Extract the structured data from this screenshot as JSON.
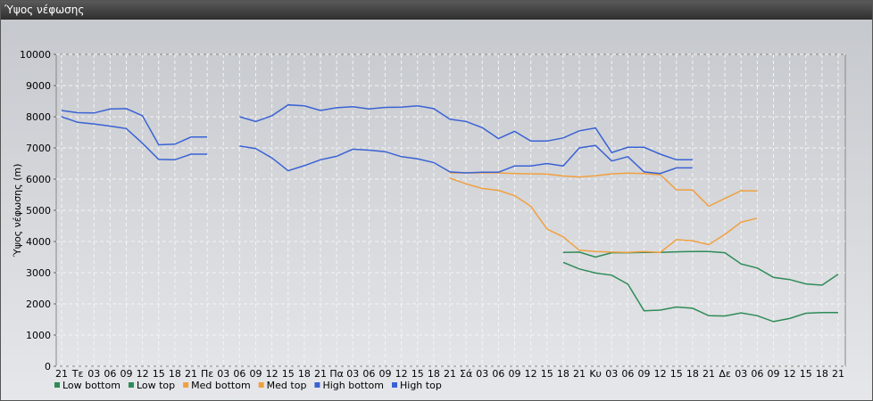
{
  "window": {
    "title": "Ύψος νέφωσης"
  },
  "chart_data": {
    "type": "line",
    "y_label": "Ύψος νέφωσης (m)",
    "categories": [
      "21",
      "Τε",
      "03",
      "06",
      "09",
      "12",
      "15",
      "18",
      "21",
      "Πε",
      "03",
      "06",
      "09",
      "12",
      "15",
      "18",
      "21",
      "Πα",
      "03",
      "06",
      "09",
      "12",
      "15",
      "18",
      "21",
      "Σά",
      "03",
      "06",
      "09",
      "12",
      "15",
      "18",
      "21",
      "Κυ",
      "03",
      "06",
      "09",
      "12",
      "15",
      "18",
      "21",
      "Δε",
      "03",
      "06",
      "09",
      "12",
      "15",
      "18",
      "21"
    ],
    "ylim": [
      0,
      10000
    ],
    "yticks": [
      0,
      1000,
      2000,
      3000,
      4000,
      5000,
      6000,
      7000,
      8000,
      9000,
      10000
    ],
    "grid": true,
    "series": [
      {
        "name": "Low bottom",
        "color": "#2e8b57",
        "values": [
          null,
          null,
          null,
          null,
          null,
          null,
          null,
          null,
          null,
          null,
          null,
          null,
          null,
          null,
          null,
          null,
          null,
          null,
          null,
          null,
          null,
          null,
          null,
          null,
          null,
          null,
          null,
          null,
          null,
          null,
          null,
          3330,
          3120,
          2990,
          2920,
          2630,
          1780,
          1800,
          1900,
          1860,
          1620,
          1610,
          1710,
          1620,
          1430,
          1530,
          1700,
          1720,
          1720
        ]
      },
      {
        "name": "Low top",
        "color": "#2e8b57",
        "values": [
          null,
          null,
          null,
          null,
          null,
          null,
          null,
          null,
          null,
          null,
          null,
          null,
          null,
          null,
          null,
          null,
          null,
          null,
          null,
          null,
          null,
          null,
          null,
          null,
          null,
          null,
          null,
          null,
          null,
          null,
          null,
          3650,
          3660,
          3500,
          3640,
          3640,
          3650,
          3650,
          3670,
          3680,
          3680,
          3640,
          3280,
          3150,
          2850,
          2780,
          2640,
          2600,
          2950
        ]
      },
      {
        "name": "Med bottom",
        "color": "#f0a040",
        "values": [
          null,
          null,
          null,
          null,
          null,
          null,
          null,
          null,
          null,
          null,
          null,
          null,
          null,
          null,
          null,
          null,
          null,
          null,
          null,
          null,
          null,
          null,
          null,
          null,
          6030,
          5850,
          5700,
          5640,
          5470,
          5130,
          4400,
          4150,
          3720,
          3680,
          3660,
          3650,
          3680,
          3650,
          4060,
          4020,
          3900,
          4230,
          4620,
          4750,
          null,
          null,
          null,
          null,
          null
        ]
      },
      {
        "name": "Med top",
        "color": "#f0a040",
        "values": [
          null,
          null,
          null,
          null,
          null,
          null,
          null,
          null,
          null,
          null,
          null,
          null,
          null,
          null,
          null,
          null,
          null,
          null,
          null,
          null,
          null,
          null,
          null,
          null,
          6200,
          6200,
          6200,
          6200,
          6180,
          6170,
          6160,
          6100,
          6070,
          6110,
          6170,
          6190,
          6180,
          6140,
          5660,
          5650,
          5130,
          5380,
          5630,
          5620,
          null,
          null,
          null,
          null,
          null
        ]
      },
      {
        "name": "High bottom",
        "color": "#3a62d4",
        "values": [
          8000,
          7820,
          7770,
          7700,
          7620,
          7150,
          6630,
          6620,
          6800,
          6800,
          null,
          7060,
          6980,
          6680,
          6270,
          6430,
          6620,
          6730,
          6960,
          6930,
          6880,
          6720,
          6650,
          6530,
          6230,
          6200,
          6220,
          6220,
          6420,
          6420,
          6500,
          6420,
          7000,
          7080,
          6580,
          6720,
          6230,
          6180,
          6360,
          6360,
          null,
          null,
          null,
          null,
          null,
          null,
          null,
          null,
          null
        ]
      },
      {
        "name": "High top",
        "color": "#3a62d4",
        "values": [
          8200,
          8130,
          8120,
          8250,
          8260,
          8030,
          7100,
          7120,
          7350,
          7350,
          null,
          8000,
          7850,
          8030,
          8380,
          8350,
          8200,
          8290,
          8320,
          8250,
          8300,
          8310,
          8350,
          8260,
          7920,
          7850,
          7650,
          7300,
          7530,
          7220,
          7220,
          7320,
          7550,
          7640,
          6850,
          7020,
          7020,
          6800,
          6620,
          6620,
          null,
          null,
          null,
          null,
          null,
          null,
          null,
          null,
          null
        ]
      }
    ]
  }
}
